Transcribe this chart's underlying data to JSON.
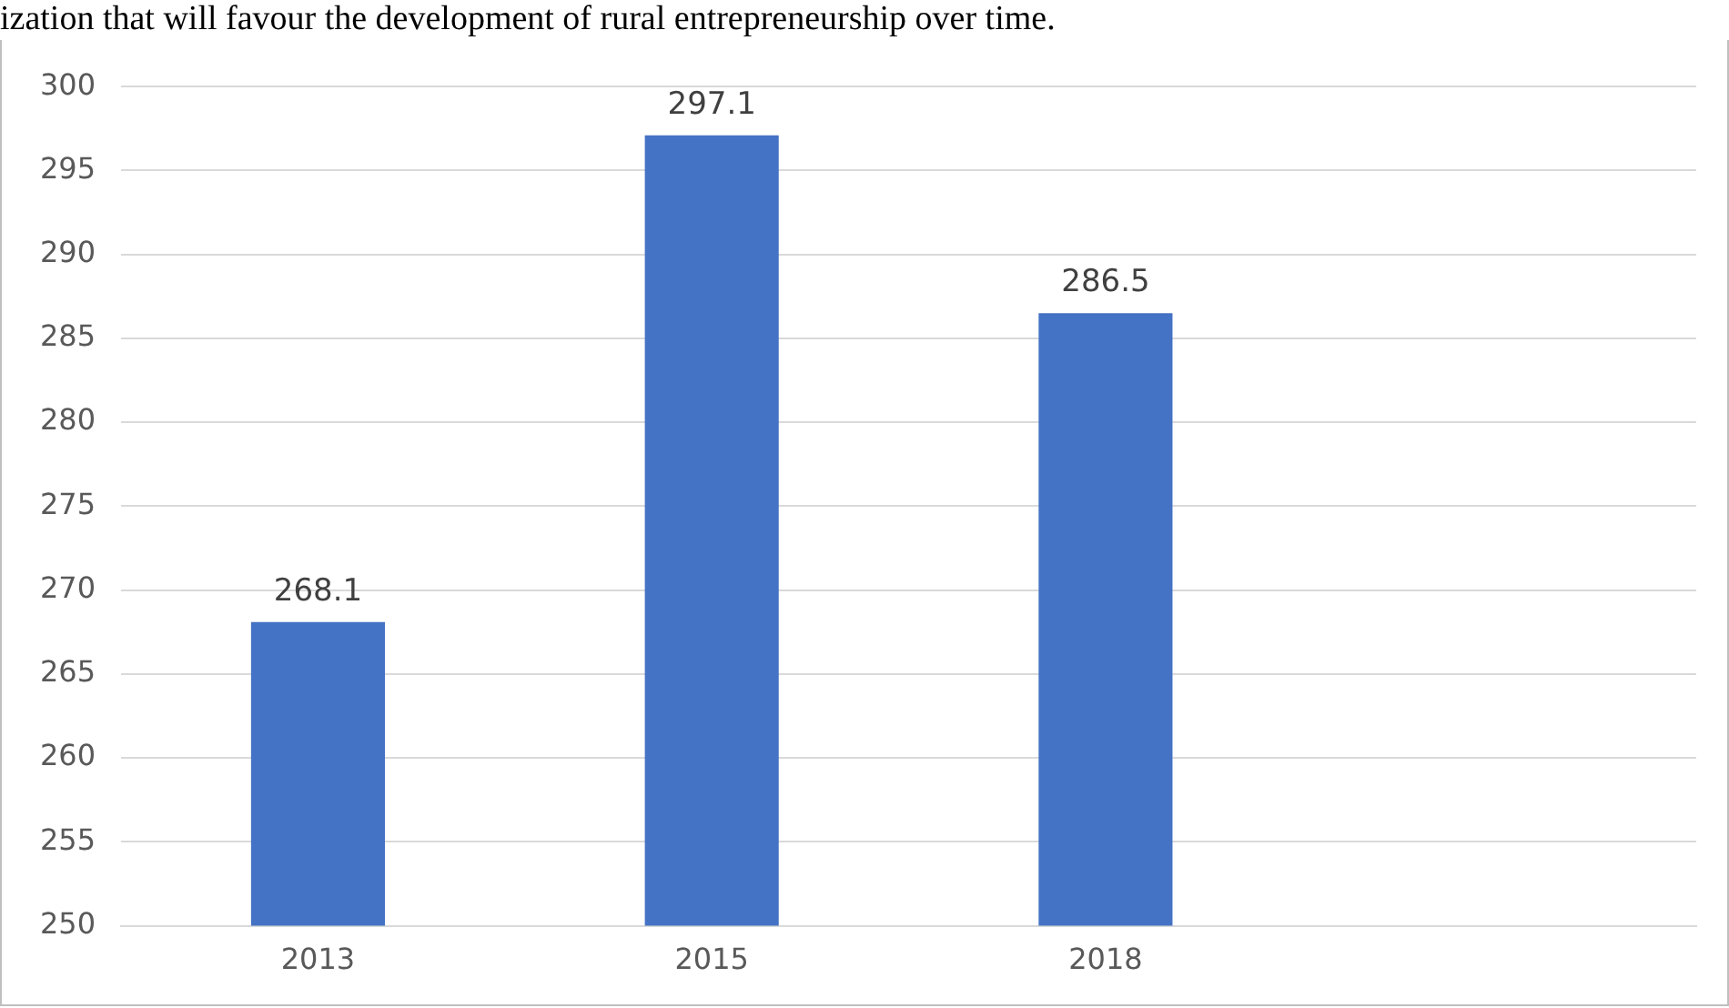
{
  "chart_data": {
    "type": "bar",
    "annotations": [
      "ization that will favour the development of rural entrepreneurship over time."
    ],
    "categories": [
      "2013",
      "2015",
      "2018",
      null
    ],
    "values": [
      268.1,
      297.1,
      286.5,
      null
    ],
    "color": "#4472c4",
    "ylim": [
      250,
      300
    ],
    "yticks": [
      250,
      255,
      260,
      265,
      270,
      275,
      280,
      285,
      290,
      295,
      300
    ],
    "grid": "y",
    "data_labels": true,
    "legend": false
  }
}
